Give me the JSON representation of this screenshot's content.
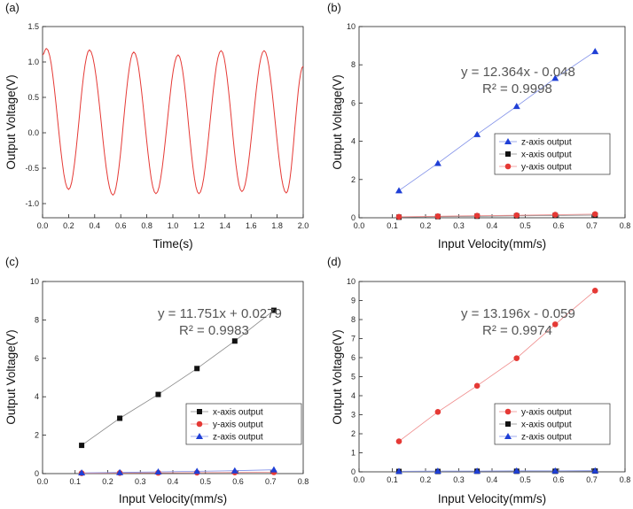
{
  "chart_data": [
    {
      "panel": "(a)",
      "type": "line",
      "xlabel": "Time(s)",
      "ylabel": "Output Voltage(V)",
      "xlim": [
        0.0,
        2.0
      ],
      "ylim": [
        -1.2,
        1.5
      ],
      "xticks": [
        "0.0",
        "0.2",
        "0.4",
        "0.6",
        "0.8",
        "1.0",
        "1.2",
        "1.4",
        "1.6",
        "1.8",
        "2.0"
      ],
      "yticks": [
        "-1.0",
        "-0.5",
        "0.0",
        "0.5",
        "1.0",
        "1.5"
      ],
      "series": [
        {
          "color": "#e53935",
          "x": [
            0.0,
            0.03,
            0.2,
            0.36,
            0.54,
            0.7,
            0.87,
            1.04,
            1.2,
            1.37,
            1.53,
            1.7,
            1.87,
            2.0
          ],
          "y": [
            1.1,
            1.19,
            -0.8,
            1.17,
            -0.88,
            1.14,
            -0.86,
            1.1,
            -0.86,
            1.16,
            -0.83,
            1.16,
            -0.85,
            0.94
          ]
        }
      ]
    },
    {
      "panel": "(b)",
      "type": "scatter",
      "xlabel": "Input Velocity(mm/s)",
      "ylabel": "Output Voltage(V)",
      "xlim": [
        0.0,
        0.8
      ],
      "ylim": [
        0,
        10
      ],
      "xticks": [
        "0.0",
        "0.1",
        "0.2",
        "0.3",
        "0.4",
        "0.5",
        "0.6",
        "0.7",
        "0.8"
      ],
      "yticks": [
        "0",
        "2",
        "4",
        "6",
        "8",
        "10"
      ],
      "annotation": [
        "y = 12.364x - 0.048",
        "R² = 0.9998"
      ],
      "legend_position": "right",
      "series": [
        {
          "name": "z-axis output",
          "marker": "triangle",
          "color": "#1f3fd6",
          "line_color": "#7f8fe8",
          "x": [
            0.12,
            0.237,
            0.355,
            0.474,
            0.59,
            0.71
          ],
          "y": [
            1.42,
            2.85,
            4.36,
            5.83,
            7.3,
            8.7
          ]
        },
        {
          "name": "x-axis output",
          "marker": "square",
          "color": "#111111",
          "line_color": "#888888",
          "x": [
            0.12,
            0.237,
            0.355,
            0.474,
            0.59,
            0.71
          ],
          "y": [
            0.03,
            0.06,
            0.08,
            0.1,
            0.12,
            0.14
          ]
        },
        {
          "name": "y-axis output",
          "marker": "circle",
          "color": "#e53935",
          "line_color": "#ef8a8a",
          "x": [
            0.12,
            0.237,
            0.355,
            0.474,
            0.59,
            0.71
          ],
          "y": [
            0.05,
            0.08,
            0.11,
            0.13,
            0.16,
            0.19
          ]
        }
      ]
    },
    {
      "panel": "(c)",
      "type": "scatter",
      "xlabel": "Input Velocity(mm/s)",
      "ylabel": "Output Voltage(V)",
      "xlim": [
        0.0,
        0.8
      ],
      "ylim": [
        0,
        10
      ],
      "xticks": [
        "0.0",
        "0.1",
        "0.2",
        "0.3",
        "0.4",
        "0.5",
        "0.6",
        "0.7",
        "0.8"
      ],
      "yticks": [
        "0",
        "2",
        "4",
        "6",
        "8",
        "10"
      ],
      "annotation": [
        "y = 11.751x + 0.0279",
        "R² = 0.9983"
      ],
      "legend_position": "right",
      "series": [
        {
          "name": "x-axis output",
          "marker": "square",
          "color": "#111111",
          "line_color": "#888888",
          "x": [
            0.12,
            0.237,
            0.355,
            0.474,
            0.59,
            0.71
          ],
          "y": [
            1.47,
            2.88,
            4.12,
            5.47,
            6.9,
            8.5
          ]
        },
        {
          "name": "y-axis output",
          "marker": "circle",
          "color": "#e53935",
          "line_color": "#ef8a8a",
          "x": [
            0.12,
            0.237,
            0.355,
            0.474,
            0.59,
            0.71
          ],
          "y": [
            0.02,
            0.03,
            0.04,
            0.05,
            0.06,
            0.07
          ]
        },
        {
          "name": "z-axis output",
          "marker": "triangle",
          "color": "#1f3fd6",
          "line_color": "#7f8fe8",
          "x": [
            0.12,
            0.237,
            0.355,
            0.474,
            0.59,
            0.71
          ],
          "y": [
            0.04,
            0.06,
            0.09,
            0.12,
            0.15,
            0.2
          ]
        }
      ]
    },
    {
      "panel": "(d)",
      "type": "scatter",
      "xlabel": "Input Velocity(mm/s)",
      "ylabel": "Output Voltage(V)",
      "xlim": [
        0.0,
        0.8
      ],
      "ylim": [
        0,
        10
      ],
      "xticks": [
        "0.0",
        "0.1",
        "0.2",
        "0.3",
        "0.4",
        "0.5",
        "0.6",
        "0.7",
        "0.8"
      ],
      "yticks": [
        "0",
        "1",
        "2",
        "3",
        "4",
        "5",
        "6",
        "7",
        "8",
        "9",
        "10"
      ],
      "annotation": [
        "y = 13.196x - 0.059",
        "R² = 0.9974"
      ],
      "legend_position": "right",
      "series": [
        {
          "name": "y-axis output",
          "marker": "circle",
          "color": "#e53935",
          "line_color": "#ef8a8a",
          "x": [
            0.12,
            0.237,
            0.355,
            0.474,
            0.59,
            0.71
          ],
          "y": [
            1.6,
            3.15,
            4.52,
            5.97,
            7.75,
            9.52
          ]
        },
        {
          "name": "x-axis output",
          "marker": "square",
          "color": "#111111",
          "line_color": "#888888",
          "x": [
            0.12,
            0.237,
            0.355,
            0.474,
            0.59,
            0.71
          ],
          "y": [
            0.02,
            0.02,
            0.03,
            0.03,
            0.03,
            0.04
          ]
        },
        {
          "name": "z-axis output",
          "marker": "triangle",
          "color": "#1f3fd6",
          "line_color": "#7f8fe8",
          "x": [
            0.12,
            0.237,
            0.355,
            0.474,
            0.59,
            0.71
          ],
          "y": [
            0.03,
            0.04,
            0.04,
            0.05,
            0.05,
            0.06
          ]
        }
      ]
    }
  ]
}
